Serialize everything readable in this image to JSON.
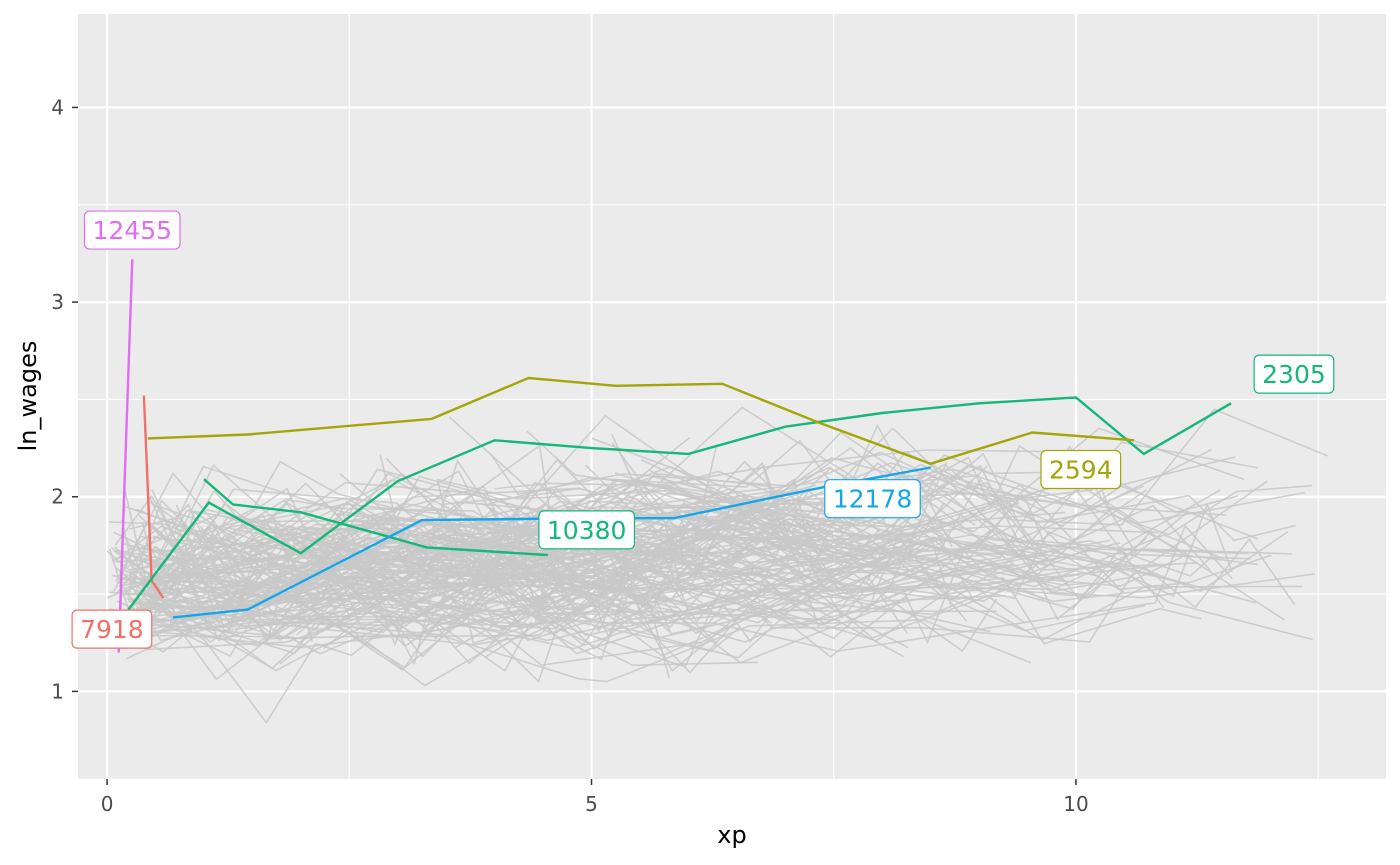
{
  "chart_data": {
    "type": "line",
    "title": "",
    "xlabel": "xp",
    "ylabel": "ln_wages",
    "xlim": [
      -0.3,
      13.2
    ],
    "ylim": [
      0.55,
      4.48
    ],
    "x_ticks": [
      0,
      5,
      10
    ],
    "x_tick_labels": [
      "0",
      "5",
      "10"
    ],
    "y_ticks": [
      1,
      2,
      3,
      4
    ],
    "y_tick_labels": [
      "1",
      "2",
      "3",
      "4"
    ],
    "grid": true,
    "legend": "none",
    "background_series_color": "#c8c8c8",
    "background_series_count": 240,
    "highlighted_series": [
      {
        "id": "12455",
        "color": "#e06ef0",
        "x": [
          0.12,
          0.26
        ],
        "y": [
          1.2,
          3.22
        ],
        "label_at": [
          0.26,
          3.37
        ]
      },
      {
        "id": "7918",
        "color": "#f27068",
        "x": [
          0.38,
          0.46,
          0.58
        ],
        "y": [
          2.52,
          1.57,
          1.48
        ],
        "label_at": [
          0.05,
          1.32
        ]
      },
      {
        "id": "10380",
        "color": "#15b77a",
        "x": [
          0.22,
          1.05,
          2.0,
          3.0,
          4.0,
          5.0,
          6.0,
          7.0,
          8.0,
          9.0,
          10.0,
          10.7,
          11.6
        ],
        "y": [
          1.42,
          1.97,
          1.71,
          2.08,
          2.29,
          2.25,
          2.22,
          2.36,
          2.43,
          2.48,
          2.51,
          2.22,
          2.48
        ],
        "label_at": [
          4.95,
          1.83
        ]
      },
      {
        "id": "2305",
        "color": "#15b77a",
        "x": [
          1.0,
          1.3,
          2.0,
          3.3,
          4.55
        ],
        "y": [
          2.09,
          1.96,
          1.92,
          1.74,
          1.7
        ],
        "label_at": [
          12.25,
          2.63
        ]
      },
      {
        "id": "12178",
        "color": "#15a6ea",
        "x": [
          0.68,
          1.45,
          3.25,
          5.0,
          5.85,
          7.3,
          8.5
        ],
        "y": [
          1.38,
          1.42,
          1.88,
          1.89,
          1.89,
          2.04,
          2.15
        ],
        "label_at": [
          7.9,
          1.99
        ]
      },
      {
        "id": "2594",
        "color": "#a3a50a",
        "x": [
          0.42,
          1.45,
          3.35,
          4.35,
          5.25,
          6.35,
          7.35,
          8.5,
          9.55,
          10.6
        ],
        "y": [
          2.3,
          2.32,
          2.4,
          2.61,
          2.57,
          2.58,
          2.38,
          2.17,
          2.33,
          2.29
        ],
        "label_at": [
          10.05,
          2.14
        ]
      }
    ]
  }
}
